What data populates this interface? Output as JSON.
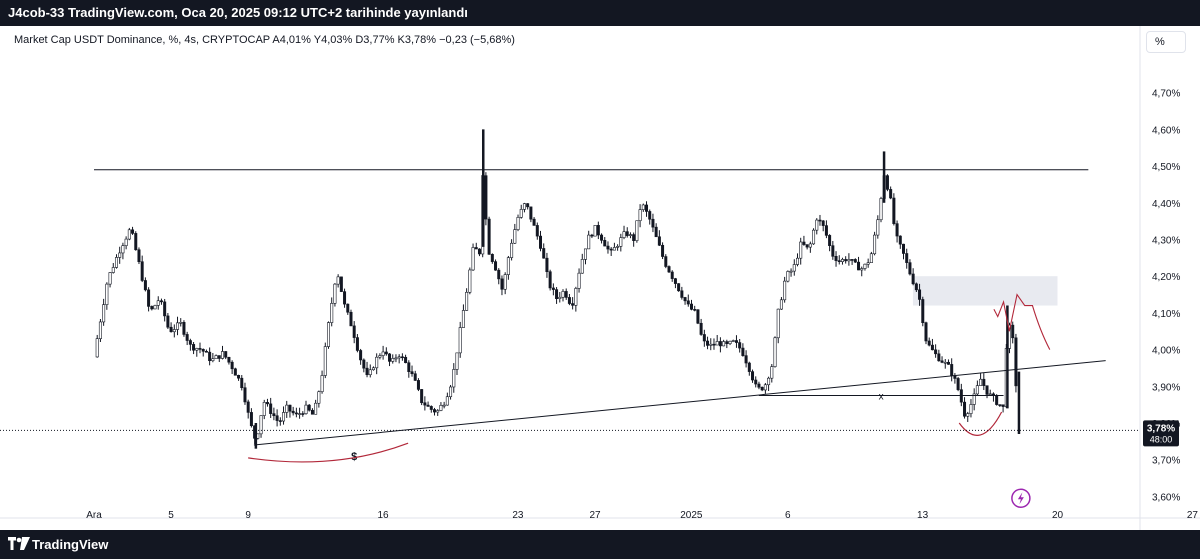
{
  "header": {
    "publish_text": "J4cob-33 TradingView.com, Oca 20, 2025 09:12 UTC+2 tarihinde yayınlandı"
  },
  "legend": {
    "text": "Market Cap USDT Dominance, %, 4s, CRYPTOCAP  A4,01%  Y4,03%  D3,77%  K3,78%  −0,23 (−5,68%)"
  },
  "scale_button": {
    "label": "%"
  },
  "footer": {
    "brand": "TradingView"
  },
  "colors": {
    "candle": "#131722",
    "drawing": "#131722",
    "red_annotation": "#b2283a",
    "zone": "#e8eaf0",
    "lightning": "#9c27b0"
  },
  "chart_data": {
    "type": "candlestick",
    "symbol": "Market Cap USDT Dominance",
    "interval": "4s",
    "ylim": [
      3.54,
      4.78
    ],
    "y_ticks": [
      "4,70%",
      "4,60%",
      "4,50%",
      "4,40%",
      "4,30%",
      "4,20%",
      "4,10%",
      "4,00%",
      "3,90%",
      "3,80%",
      "3,70%",
      "3,60%"
    ],
    "y_tick_values": [
      4.7,
      4.6,
      4.5,
      4.4,
      4.3,
      4.2,
      4.1,
      4.0,
      3.9,
      3.8,
      3.7,
      3.6
    ],
    "x_ticks": [
      {
        "label": "Ara",
        "day": 0
      },
      {
        "label": "5",
        "day": 4
      },
      {
        "label": "9",
        "day": 8
      },
      {
        "label": "16",
        "day": 15
      },
      {
        "label": "23",
        "day": 22
      },
      {
        "label": "27",
        "day": 26
      },
      {
        "label": "2025",
        "day": 31
      },
      {
        "label": "6",
        "day": 36
      },
      {
        "label": "13",
        "day": 43
      },
      {
        "label": "20",
        "day": 50
      },
      {
        "label": "27",
        "day": 57
      }
    ],
    "path": [
      {
        "day": 0,
        "v": 3.98
      },
      {
        "day": 0.7,
        "v": 4.19
      },
      {
        "day": 1.4,
        "v": 4.28
      },
      {
        "day": 1.9,
        "v": 4.33
      },
      {
        "day": 2.4,
        "v": 4.22
      },
      {
        "day": 2.9,
        "v": 4.1
      },
      {
        "day": 3.4,
        "v": 4.14
      },
      {
        "day": 3.9,
        "v": 4.05
      },
      {
        "day": 4.5,
        "v": 4.07
      },
      {
        "day": 5.0,
        "v": 4.01
      },
      {
        "day": 5.6,
        "v": 4.0
      },
      {
        "day": 6.1,
        "v": 3.97
      },
      {
        "day": 6.7,
        "v": 3.99
      },
      {
        "day": 7.2,
        "v": 3.95
      },
      {
        "day": 7.7,
        "v": 3.9
      },
      {
        "day": 8.1,
        "v": 3.8
      },
      {
        "day": 8.4,
        "v": 3.75
      },
      {
        "day": 8.8,
        "v": 3.86
      },
      {
        "day": 9.2,
        "v": 3.83
      },
      {
        "day": 9.6,
        "v": 3.8
      },
      {
        "day": 10.0,
        "v": 3.84
      },
      {
        "day": 10.5,
        "v": 3.82
      },
      {
        "day": 11.0,
        "v": 3.84
      },
      {
        "day": 11.4,
        "v": 3.82
      },
      {
        "day": 11.8,
        "v": 3.92
      },
      {
        "day": 12.2,
        "v": 4.08
      },
      {
        "day": 12.6,
        "v": 4.22
      },
      {
        "day": 13.0,
        "v": 4.12
      },
      {
        "day": 13.4,
        "v": 4.06
      },
      {
        "day": 13.8,
        "v": 3.98
      },
      {
        "day": 14.2,
        "v": 3.92
      },
      {
        "day": 14.6,
        "v": 3.97
      },
      {
        "day": 15.0,
        "v": 4.0
      },
      {
        "day": 15.4,
        "v": 3.96
      },
      {
        "day": 15.8,
        "v": 3.99
      },
      {
        "day": 16.2,
        "v": 3.96
      },
      {
        "day": 16.6,
        "v": 3.92
      },
      {
        "day": 17.0,
        "v": 3.86
      },
      {
        "day": 17.4,
        "v": 3.84
      },
      {
        "day": 17.8,
        "v": 3.83
      },
      {
        "day": 18.2,
        "v": 3.86
      },
      {
        "day": 18.6,
        "v": 3.92
      },
      {
        "day": 19.0,
        "v": 4.05
      },
      {
        "day": 19.4,
        "v": 4.18
      },
      {
        "day": 19.7,
        "v": 4.28
      },
      {
        "day": 20.0,
        "v": 4.26
      },
      {
        "day": 20.2,
        "v": 4.52
      },
      {
        "day": 20.4,
        "v": 4.28
      },
      {
        "day": 20.8,
        "v": 4.23
      },
      {
        "day": 21.2,
        "v": 4.16
      },
      {
        "day": 21.6,
        "v": 4.28
      },
      {
        "day": 22.0,
        "v": 4.36
      },
      {
        "day": 22.4,
        "v": 4.4
      },
      {
        "day": 22.8,
        "v": 4.34
      },
      {
        "day": 23.2,
        "v": 4.28
      },
      {
        "day": 23.6,
        "v": 4.18
      },
      {
        "day": 24.0,
        "v": 4.14
      },
      {
        "day": 24.4,
        "v": 4.16
      },
      {
        "day": 24.8,
        "v": 4.12
      },
      {
        "day": 25.2,
        "v": 4.22
      },
      {
        "day": 25.6,
        "v": 4.3
      },
      {
        "day": 26.0,
        "v": 4.33
      },
      {
        "day": 26.4,
        "v": 4.3
      },
      {
        "day": 26.8,
        "v": 4.26
      },
      {
        "day": 27.2,
        "v": 4.29
      },
      {
        "day": 27.6,
        "v": 4.32
      },
      {
        "day": 28.0,
        "v": 4.3
      },
      {
        "day": 28.4,
        "v": 4.4
      },
      {
        "day": 28.8,
        "v": 4.36
      },
      {
        "day": 29.2,
        "v": 4.3
      },
      {
        "day": 29.6,
        "v": 4.24
      },
      {
        "day": 30.0,
        "v": 4.2
      },
      {
        "day": 30.4,
        "v": 4.16
      },
      {
        "day": 30.8,
        "v": 4.12
      },
      {
        "day": 31.2,
        "v": 4.1
      },
      {
        "day": 31.6,
        "v": 4.02
      },
      {
        "day": 32.0,
        "v": 4.01
      },
      {
        "day": 32.4,
        "v": 4.02
      },
      {
        "day": 32.8,
        "v": 4.01
      },
      {
        "day": 33.2,
        "v": 4.02
      },
      {
        "day": 33.6,
        "v": 4.0
      },
      {
        "day": 34.0,
        "v": 3.95
      },
      {
        "day": 34.4,
        "v": 3.89
      },
      {
        "day": 34.8,
        "v": 3.9
      },
      {
        "day": 35.2,
        "v": 3.96
      },
      {
        "day": 35.5,
        "v": 4.1
      },
      {
        "day": 35.9,
        "v": 4.2
      },
      {
        "day": 36.3,
        "v": 4.22
      },
      {
        "day": 36.7,
        "v": 4.29
      },
      {
        "day": 37.1,
        "v": 4.27
      },
      {
        "day": 37.5,
        "v": 4.36
      },
      {
        "day": 37.9,
        "v": 4.33
      },
      {
        "day": 38.3,
        "v": 4.26
      },
      {
        "day": 38.7,
        "v": 4.24
      },
      {
        "day": 39.1,
        "v": 4.25
      },
      {
        "day": 39.5,
        "v": 4.23
      },
      {
        "day": 39.9,
        "v": 4.22
      },
      {
        "day": 40.3,
        "v": 4.25
      },
      {
        "day": 40.7,
        "v": 4.36
      },
      {
        "day": 41.0,
        "v": 4.48
      },
      {
        "day": 41.3,
        "v": 4.42
      },
      {
        "day": 41.6,
        "v": 4.31
      },
      {
        "day": 42.0,
        "v": 4.26
      },
      {
        "day": 42.4,
        "v": 4.2
      },
      {
        "day": 42.8,
        "v": 4.15
      },
      {
        "day": 43.2,
        "v": 4.02
      },
      {
        "day": 43.6,
        "v": 3.99
      },
      {
        "day": 44.0,
        "v": 3.97
      },
      {
        "day": 44.4,
        "v": 3.95
      },
      {
        "day": 44.8,
        "v": 3.9
      },
      {
        "day": 45.2,
        "v": 3.82
      },
      {
        "day": 45.6,
        "v": 3.86
      },
      {
        "day": 46.0,
        "v": 3.92
      },
      {
        "day": 46.4,
        "v": 3.88
      },
      {
        "day": 46.8,
        "v": 3.86
      },
      {
        "day": 47.2,
        "v": 3.84
      },
      {
        "day": 47.4,
        "v": 4.08
      },
      {
        "day": 47.7,
        "v": 4.02
      },
      {
        "day": 48.0,
        "v": 3.78
      }
    ],
    "spikes": [
      {
        "day": 20.2,
        "high": 4.6,
        "low": 4.28
      },
      {
        "day": 41.0,
        "high": 4.54,
        "low": 4.4
      },
      {
        "day": 47.4,
        "high": 4.12,
        "low": 3.84
      },
      {
        "day": 48.0,
        "high": 3.94,
        "low": 3.77
      },
      {
        "day": 8.4,
        "high": 3.8,
        "low": 3.73
      }
    ],
    "last_price": {
      "label": "3,78%",
      "value": 3.78,
      "countdown": "48:00"
    },
    "drawings": {
      "resistance_line": {
        "from": {
          "day": 0,
          "v": 4.49
        },
        "to": {
          "day": 51.6,
          "v": 4.49
        }
      },
      "trendline": {
        "from": {
          "day": 8.3,
          "v": 3.74
        },
        "to": {
          "day": 52.5,
          "v": 3.97
        }
      },
      "support_zone": {
        "day_from": 42.5,
        "day_to": 50.0,
        "v_top": 4.2,
        "v_bottom": 4.12
      },
      "horizontal_x_line": {
        "from": {
          "day": 34.5,
          "v": 3.875
        },
        "to": {
          "day": 47.2,
          "v": 3.875
        },
        "marker": "x"
      },
      "dollar_marker": {
        "label": "$",
        "day": 13.5,
        "v": 3.71
      },
      "lightning_marker": {
        "day": 48.1,
        "v": 3.595
      }
    }
  }
}
